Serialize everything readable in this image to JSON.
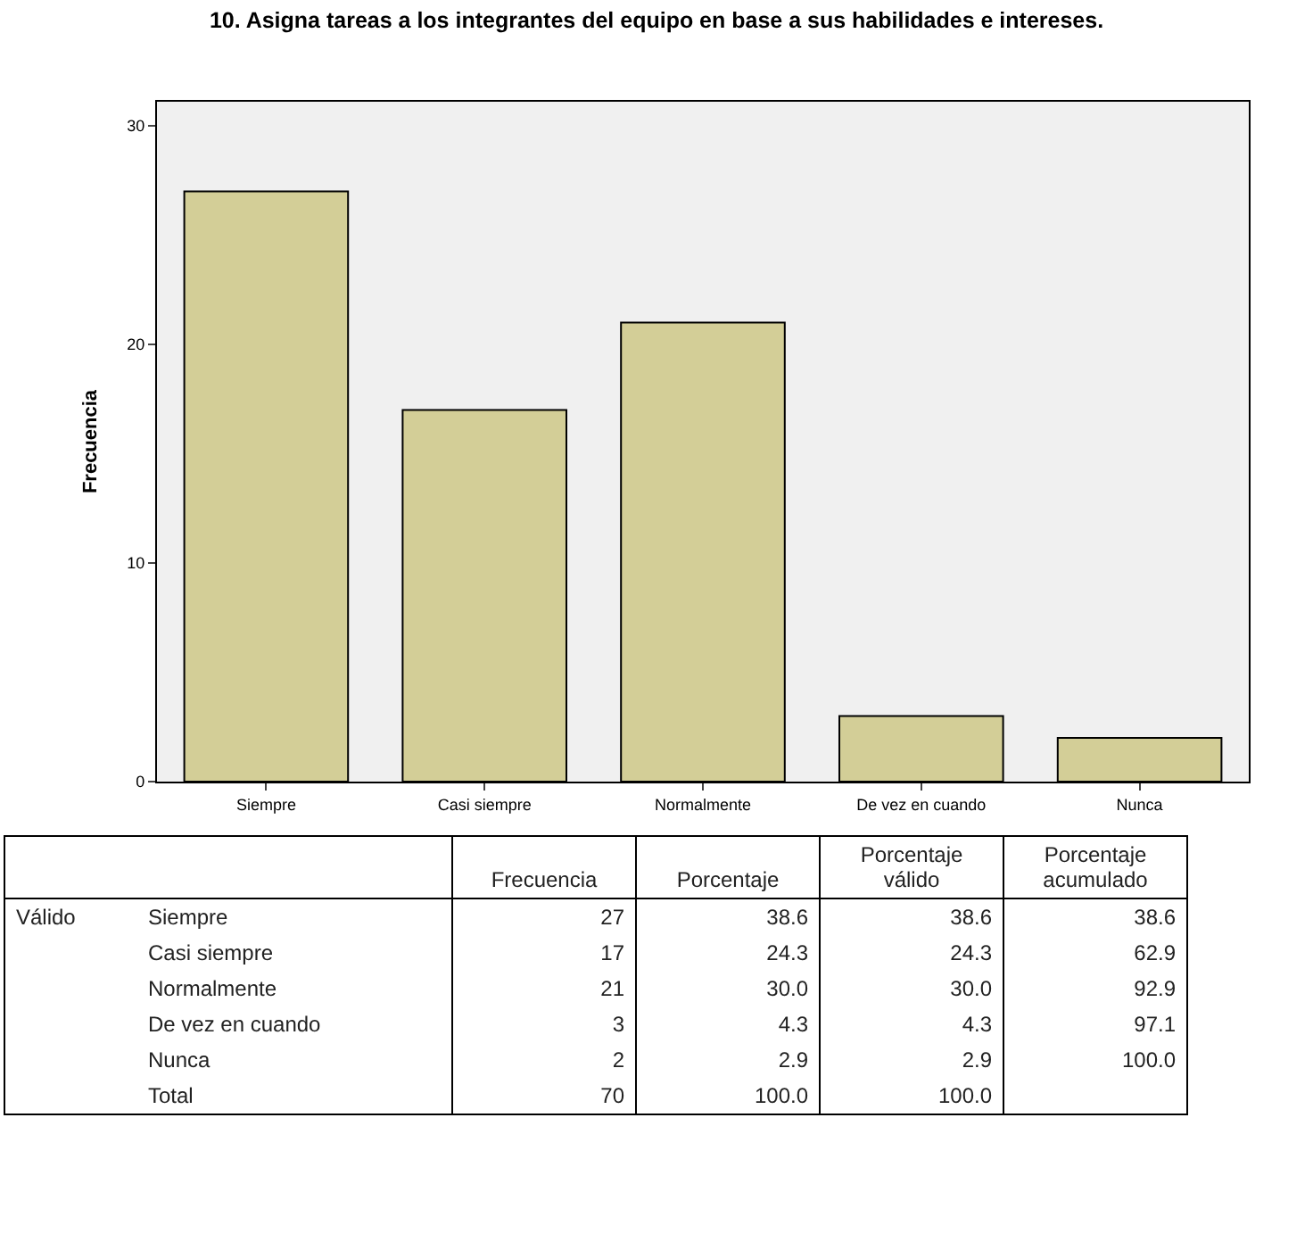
{
  "chart_data": [
    {
      "type": "bar",
      "title": "10. Asigna tareas a los integrantes del equipo en base a sus habilidades e intereses.",
      "ylabel": "Frecuencia",
      "categories": [
        "Siempre",
        "Casi siempre",
        "Normalmente",
        "De vez en cuando",
        "Nunca"
      ],
      "values": [
        27,
        17,
        21,
        3,
        2
      ],
      "color": "#d3ce97",
      "ylim": [
        0,
        31.1
      ],
      "yticks": [
        0,
        10,
        20,
        30
      ],
      "grid": false
    },
    {
      "type": "other",
      "annotations": [
        "Válido"
      ],
      "categories": [
        "Siempre",
        "Casi siempre",
        "Normalmente",
        "De vez en cuando",
        "Nunca",
        "Total"
      ],
      "series": [
        {
          "name": "Frecuencia",
          "values": [
            27,
            17,
            21,
            3,
            2,
            70
          ],
          "value_labels": [
            "27",
            "17",
            "21",
            "3",
            "2",
            "70"
          ]
        },
        {
          "name": "Porcentaje",
          "values": [
            38.6,
            24.3,
            30.0,
            4.3,
            2.9,
            100.0
          ],
          "value_labels": [
            "38.6",
            "24.3",
            "30.0",
            "4.3",
            "2.9",
            "100.0"
          ]
        },
        {
          "name": "Porcentaje válido",
          "values": [
            38.6,
            24.3,
            30.0,
            4.3,
            2.9,
            100.0
          ],
          "value_labels": [
            "38.6",
            "24.3",
            "30.0",
            "4.3",
            "2.9",
            "100.0"
          ]
        },
        {
          "name": "Porcentaje acumulado",
          "values": [
            38.6,
            62.9,
            92.9,
            97.1,
            100.0,
            null
          ],
          "value_labels": [
            "38.6",
            "62.9",
            "92.9",
            "97.1",
            "100.0",
            null
          ]
        }
      ]
    }
  ]
}
